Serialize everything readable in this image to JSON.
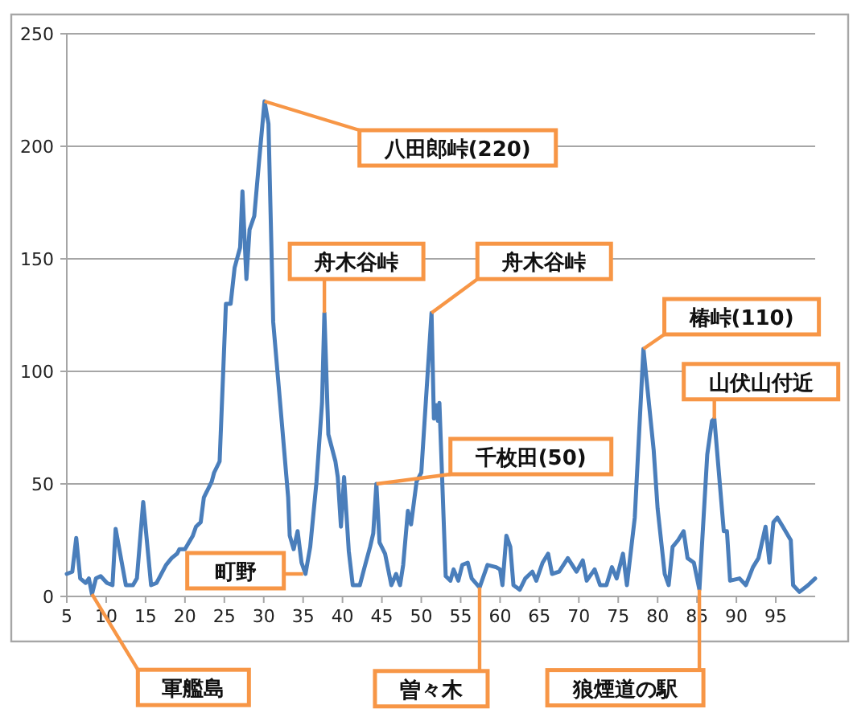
{
  "chart_data": {
    "type": "line",
    "color": "#4a7ebb",
    "grid": "y",
    "xlim": [
      5,
      100
    ],
    "ylim": [
      0,
      250
    ],
    "xticks": [
      5,
      10,
      15,
      20,
      25,
      30,
      35,
      40,
      45,
      50,
      55,
      60,
      65,
      70,
      75,
      80,
      85,
      90,
      95
    ],
    "yticks": [
      0,
      50,
      100,
      150,
      200,
      250
    ],
    "x": [
      5,
      5.7,
      6.2,
      6.7,
      7.4,
      7.8,
      8.2,
      8.7,
      9.3,
      10.1,
      10.8,
      11.2,
      12.5,
      13.4,
      13.9,
      14.7,
      15.7,
      16.4,
      17.6,
      18.3,
      19,
      19.3,
      20,
      21,
      21.4,
      22,
      22.4,
      23.4,
      23.7,
      24.4,
      25.2,
      25.8,
      26.3,
      27,
      27.3,
      27.8,
      28.2,
      28.8,
      29.4,
      30.1,
      30.6,
      31.2,
      32.3,
      33.1,
      33.3,
      33.8,
      34.3,
      34.8,
      35.3,
      35.9,
      36.7,
      37.4,
      37.7,
      38.2,
      39.1,
      39.4,
      39.8,
      40.2,
      40.8,
      41.3,
      42.2,
      42.8,
      43.5,
      43.9,
      44.3,
      44.7,
      45.4,
      46.2,
      46.8,
      47.3,
      47.7,
      48.3,
      48.7,
      49.4,
      50,
      51.3,
      51.6,
      51.9,
      52.1,
      52.3,
      53.1,
      53.7,
      54.1,
      54.7,
      55.2,
      55.9,
      56.4,
      57.4,
      58.4,
      59.5,
      60,
      60.3,
      60.8,
      61.3,
      61.7,
      62.5,
      63.2,
      64.1,
      64.6,
      65.4,
      66.1,
      66.6,
      67.5,
      68.6,
      69.7,
      70.5,
      71,
      72,
      72.7,
      73.5,
      74.2,
      74.8,
      75.6,
      76.1,
      77.1,
      78.2,
      79.5,
      80,
      80.9,
      81.4,
      81.9,
      82.6,
      83.3,
      83.8,
      84.6,
      85.3,
      86.3,
      86.9,
      87.2,
      88.4,
      88.8,
      89.2,
      90.4,
      91.2,
      92.1,
      92.8,
      93.7,
      94.2,
      94.7,
      95.2,
      95.9,
      96.9,
      97.2,
      98,
      99.1,
      100
    ],
    "values": [
      10,
      11,
      26,
      8,
      6,
      8,
      1,
      8,
      9,
      6,
      5,
      30,
      5,
      5,
      8,
      42,
      5,
      6,
      14,
      17,
      19,
      21,
      21,
      27,
      31,
      33,
      44,
      51,
      55,
      60,
      130,
      130,
      146,
      155,
      180,
      141,
      163,
      169,
      193,
      220,
      210,
      122,
      77,
      44,
      27,
      21,
      29,
      15,
      10,
      22,
      51,
      86,
      126,
      72,
      60,
      53,
      31,
      53,
      20,
      5,
      5,
      13,
      22,
      28,
      50,
      24,
      19,
      5,
      10,
      5,
      14,
      38,
      32,
      51,
      55,
      126,
      79,
      85,
      78,
      86,
      9,
      7,
      12,
      7,
      14,
      15,
      8,
      4,
      14,
      13,
      12,
      5,
      27,
      22,
      5,
      3,
      8,
      11,
      7,
      15,
      19,
      10,
      11,
      17,
      11,
      16,
      7,
      12,
      5,
      5,
      13,
      8,
      19,
      5,
      35,
      110,
      65,
      39,
      10,
      5,
      22,
      25,
      29,
      17,
      15,
      3,
      63,
      78,
      79,
      29,
      29,
      7,
      8,
      5,
      13,
      17,
      31,
      15,
      33,
      35,
      31,
      25,
      5,
      2,
      5,
      8
    ],
    "annotations": [
      {
        "text": "八田郎峠(220)",
        "x": 30.1,
        "y": 220
      },
      {
        "text": "舟木谷峠",
        "x": 37.7,
        "y": 126
      },
      {
        "text": "舟木谷峠",
        "x": 51.3,
        "y": 126
      },
      {
        "text": "千枚田(50)",
        "x": 44.3,
        "y": 50
      },
      {
        "text": "町野",
        "x": 35,
        "y": 10
      },
      {
        "text": "軍艦島",
        "x": 8.2,
        "y": 1
      },
      {
        "text": "曽々木",
        "x": 57.4,
        "y": 4
      },
      {
        "text": "狼煙道の駅",
        "x": 85.3,
        "y": 3
      },
      {
        "text": "椿峠(110)",
        "x": 78.2,
        "y": 110
      },
      {
        "text": "山伏山付近",
        "x": 87.2,
        "y": 79
      }
    ]
  }
}
